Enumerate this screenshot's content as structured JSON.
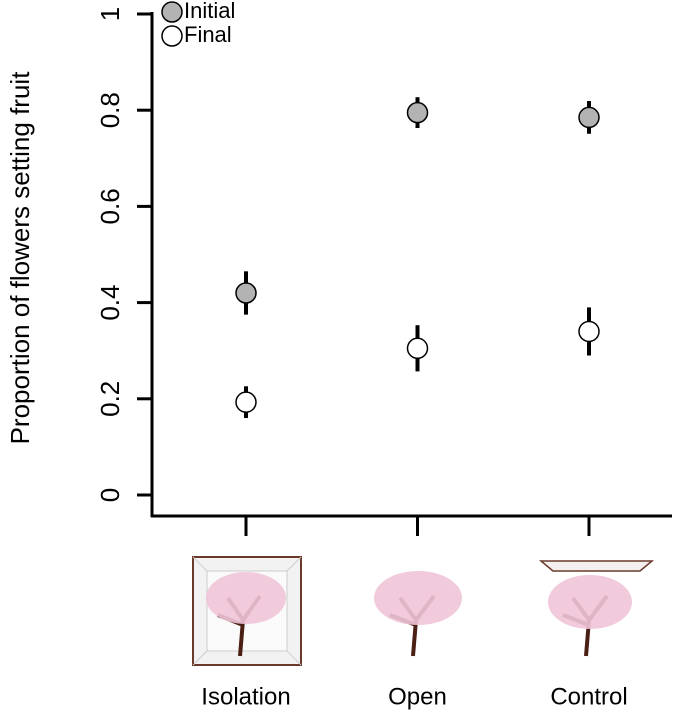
{
  "chart_data": {
    "type": "dot-errorbar",
    "y_label": "Proportion of flowers setting fruit",
    "categories": [
      "Isolation",
      "Open",
      "Control"
    ],
    "series": [
      {
        "name": "Initial",
        "color": "#b3b3b3",
        "values": [
          0.42,
          0.795,
          0.785
        ],
        "errors": [
          0.045,
          0.032,
          0.034
        ]
      },
      {
        "name": "Final",
        "color": "#ffffff",
        "values": [
          0.193,
          0.305,
          0.34
        ],
        "errors": [
          0.033,
          0.048,
          0.05
        ]
      }
    ],
    "ylim": [
      0,
      1
    ],
    "yticks": [
      0,
      0.2,
      0.4,
      0.6,
      0.8,
      1
    ],
    "legend": "top-left",
    "grid": false
  }
}
